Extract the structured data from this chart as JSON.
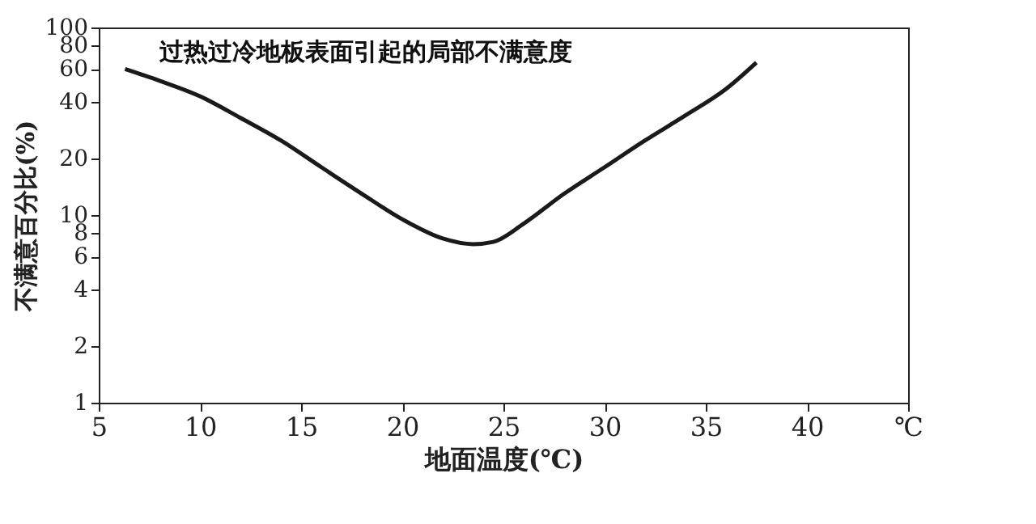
{
  "chart_data": {
    "type": "line",
    "title": "过热过冷地板表面引起的局部不满意度",
    "xlabel": "地面温度(℃)",
    "ylabel": "不满意百分比(%)",
    "x": [
      6.3,
      8,
      10,
      12,
      14,
      16,
      18,
      20,
      22,
      23.5,
      24.5,
      26,
      28,
      30,
      32,
      34,
      36,
      37.5
    ],
    "series": [
      {
        "color": "#1a1a1a",
        "values": [
          60,
          52,
          43,
          33,
          25,
          18,
          13,
          9.5,
          7.5,
          7,
          7.2,
          9,
          13,
          18,
          25,
          34,
          47,
          65
        ]
      }
    ],
    "xlim": [
      5,
      45
    ],
    "xticks": [
      5,
      10,
      15,
      20,
      25,
      30,
      35,
      40,
      {
        "value": 45,
        "label": "℃"
      }
    ],
    "ylim": [
      1,
      100
    ],
    "yticks": [
      1,
      2,
      4,
      6,
      8,
      10,
      20,
      40,
      60,
      80,
      100
    ],
    "log": "y",
    "grid": false,
    "marker": "none",
    "line_style": "solid"
  }
}
